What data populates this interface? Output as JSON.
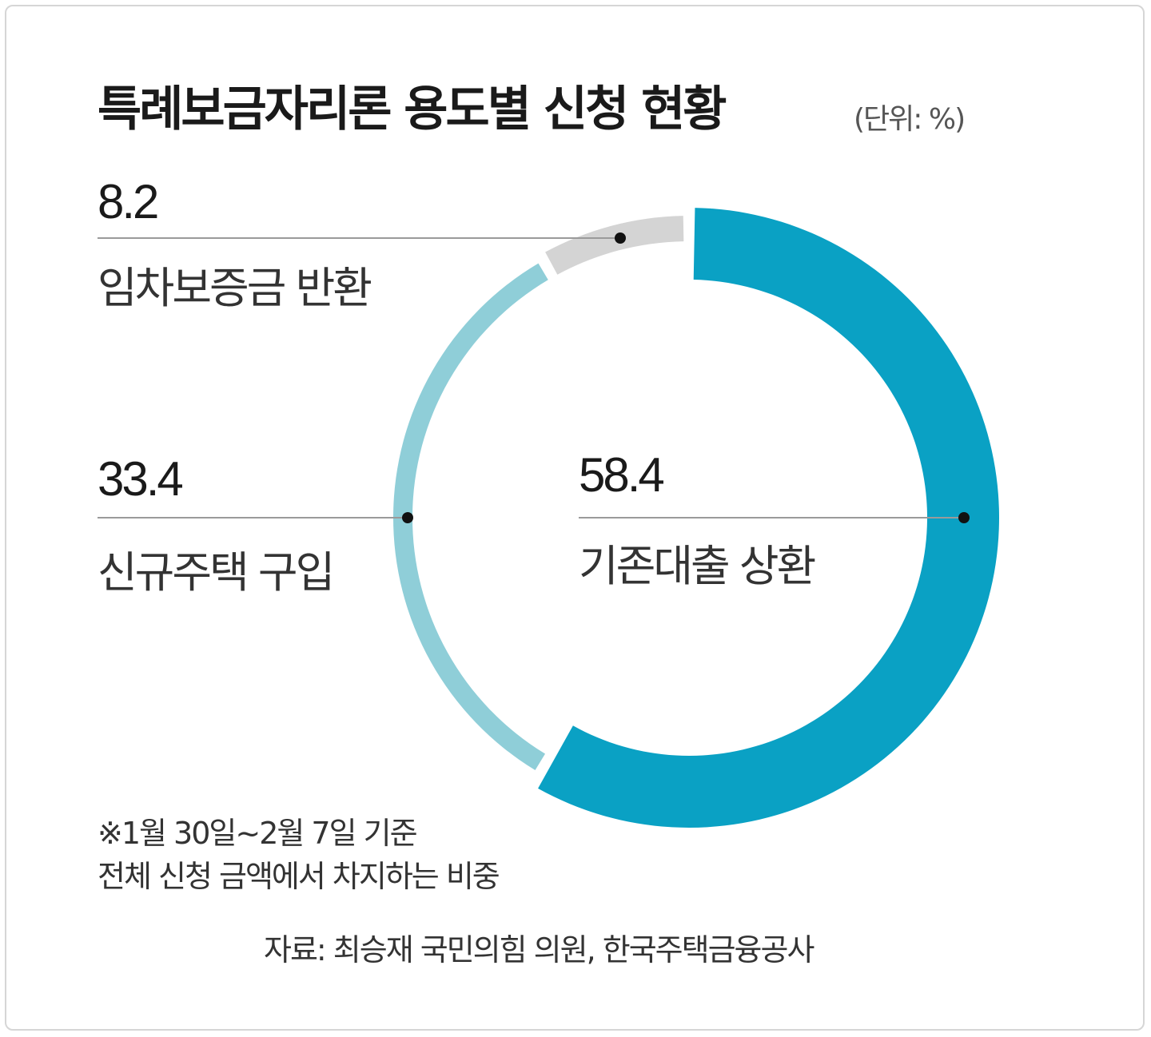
{
  "chart_data": {
    "type": "pie",
    "title": "특례보금자리론 용도별 신청 현황",
    "unit": "(단위: %)",
    "slices": [
      {
        "label": "기존대출 상환",
        "value": 58.4,
        "value_label": "58.4",
        "color": "#0aa1c4"
      },
      {
        "label": "신규주택 구입",
        "value": 33.4,
        "value_label": "33.4",
        "color": "#8fced8"
      },
      {
        "label": "임차보증금 반환",
        "value": 8.2,
        "value_label": "8.2",
        "color": "#d4d4d4"
      }
    ],
    "notes": [
      "※1월 30일~2월 7일 기준",
      "전체 신청 금액에서 차지하는 비중"
    ],
    "source": "자료: 최승재 국민의힘 의원, 한국주택금융공사"
  }
}
